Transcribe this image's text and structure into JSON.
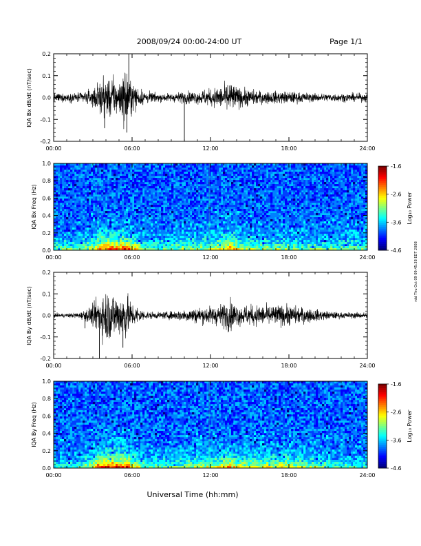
{
  "header": {
    "title": "2008/09/24  00:00-24:00 UT",
    "page": "Page 1/1"
  },
  "xaxis": {
    "ticks": [
      "00:00",
      "06:00",
      "12:00",
      "18:00",
      "24:00"
    ],
    "label": "Universal Time (hh:mm)"
  },
  "side_stamp": "rdd Thu Oct 09 09:45:38 EDT 2008",
  "colorbar": {
    "label": "Log₁₀ Power",
    "ticks": [
      "-1.6",
      "-2.6",
      "-3.6",
      "-4.6"
    ],
    "range": [
      -4.6,
      -1.6
    ]
  },
  "chart_data": [
    {
      "type": "line",
      "ylabel": "IQA Bx dB/dt (nT/sec)",
      "yticks": [
        "0.2",
        "0.1",
        "0.0",
        "-0.1",
        "-0.2"
      ],
      "xlim": [
        0,
        24
      ],
      "ylim": [
        -0.2,
        0.2
      ],
      "envelope_hours": [
        0,
        1,
        2,
        3,
        3.5,
        4,
        4.5,
        5,
        5.5,
        6,
        6.5,
        7,
        8,
        9,
        10,
        11,
        11.5,
        12,
        12.5,
        13,
        13.5,
        14,
        15,
        16,
        17,
        18,
        19,
        20,
        21,
        22,
        23,
        24
      ],
      "envelope_amplitude": [
        0.02,
        0.02,
        0.025,
        0.04,
        0.08,
        0.09,
        0.1,
        0.08,
        0.14,
        0.07,
        0.05,
        0.03,
        0.02,
        0.02,
        0.03,
        0.03,
        0.04,
        0.04,
        0.05,
        0.06,
        0.08,
        0.05,
        0.04,
        0.03,
        0.03,
        0.03,
        0.025,
        0.02,
        0.02,
        0.02,
        0.02,
        0.02
      ],
      "spikes": [
        {
          "x": 5.75,
          "y": 0.2
        },
        {
          "x": 10.0,
          "y": -0.2
        },
        {
          "x": 5.6,
          "y": -0.16
        },
        {
          "x": 3.9,
          "y": -0.14
        }
      ]
    },
    {
      "type": "heatmap",
      "ylabel": "IQA Bx Freq (Hz)",
      "yticks": [
        "1.0",
        "0.8",
        "0.6",
        "0.4",
        "0.2",
        "0.0"
      ],
      "xlim": [
        0,
        24
      ],
      "ylim": [
        0,
        1
      ],
      "zlim": [
        -4.6,
        -1.6
      ]
    },
    {
      "type": "line",
      "ylabel": "IQA By dB/dt (nT/sec)",
      "yticks": [
        "0.2",
        "0.1",
        "0.0",
        "-0.1",
        "-0.2"
      ],
      "xlim": [
        0,
        24
      ],
      "ylim": [
        -0.2,
        0.2
      ],
      "envelope_hours": [
        0,
        1,
        2,
        3,
        3.5,
        4,
        4.5,
        5,
        5.5,
        6,
        6.5,
        7,
        8,
        9,
        10,
        11,
        11.5,
        12,
        12.5,
        13,
        13.5,
        14,
        15,
        16,
        17,
        18,
        19,
        20,
        21,
        22,
        23,
        24
      ],
      "envelope_amplitude": [
        0.01,
        0.01,
        0.015,
        0.05,
        0.1,
        0.13,
        0.12,
        0.1,
        0.12,
        0.06,
        0.04,
        0.02,
        0.015,
        0.02,
        0.03,
        0.04,
        0.04,
        0.045,
        0.05,
        0.06,
        0.08,
        0.05,
        0.05,
        0.05,
        0.05,
        0.05,
        0.04,
        0.03,
        0.02,
        0.015,
        0.015,
        0.015
      ],
      "spikes": [
        {
          "x": 3.5,
          "y": -0.2
        },
        {
          "x": 5.3,
          "y": -0.15
        },
        {
          "x": 2.4,
          "y": -0.06
        }
      ]
    },
    {
      "type": "heatmap",
      "ylabel": "IQA By Freq (Hz)",
      "yticks": [
        "1.0",
        "0.8",
        "0.6",
        "0.4",
        "0.2",
        "0.0"
      ],
      "xlim": [
        0,
        24
      ],
      "ylim": [
        0,
        1
      ],
      "zlim": [
        -4.6,
        -1.6
      ]
    }
  ]
}
